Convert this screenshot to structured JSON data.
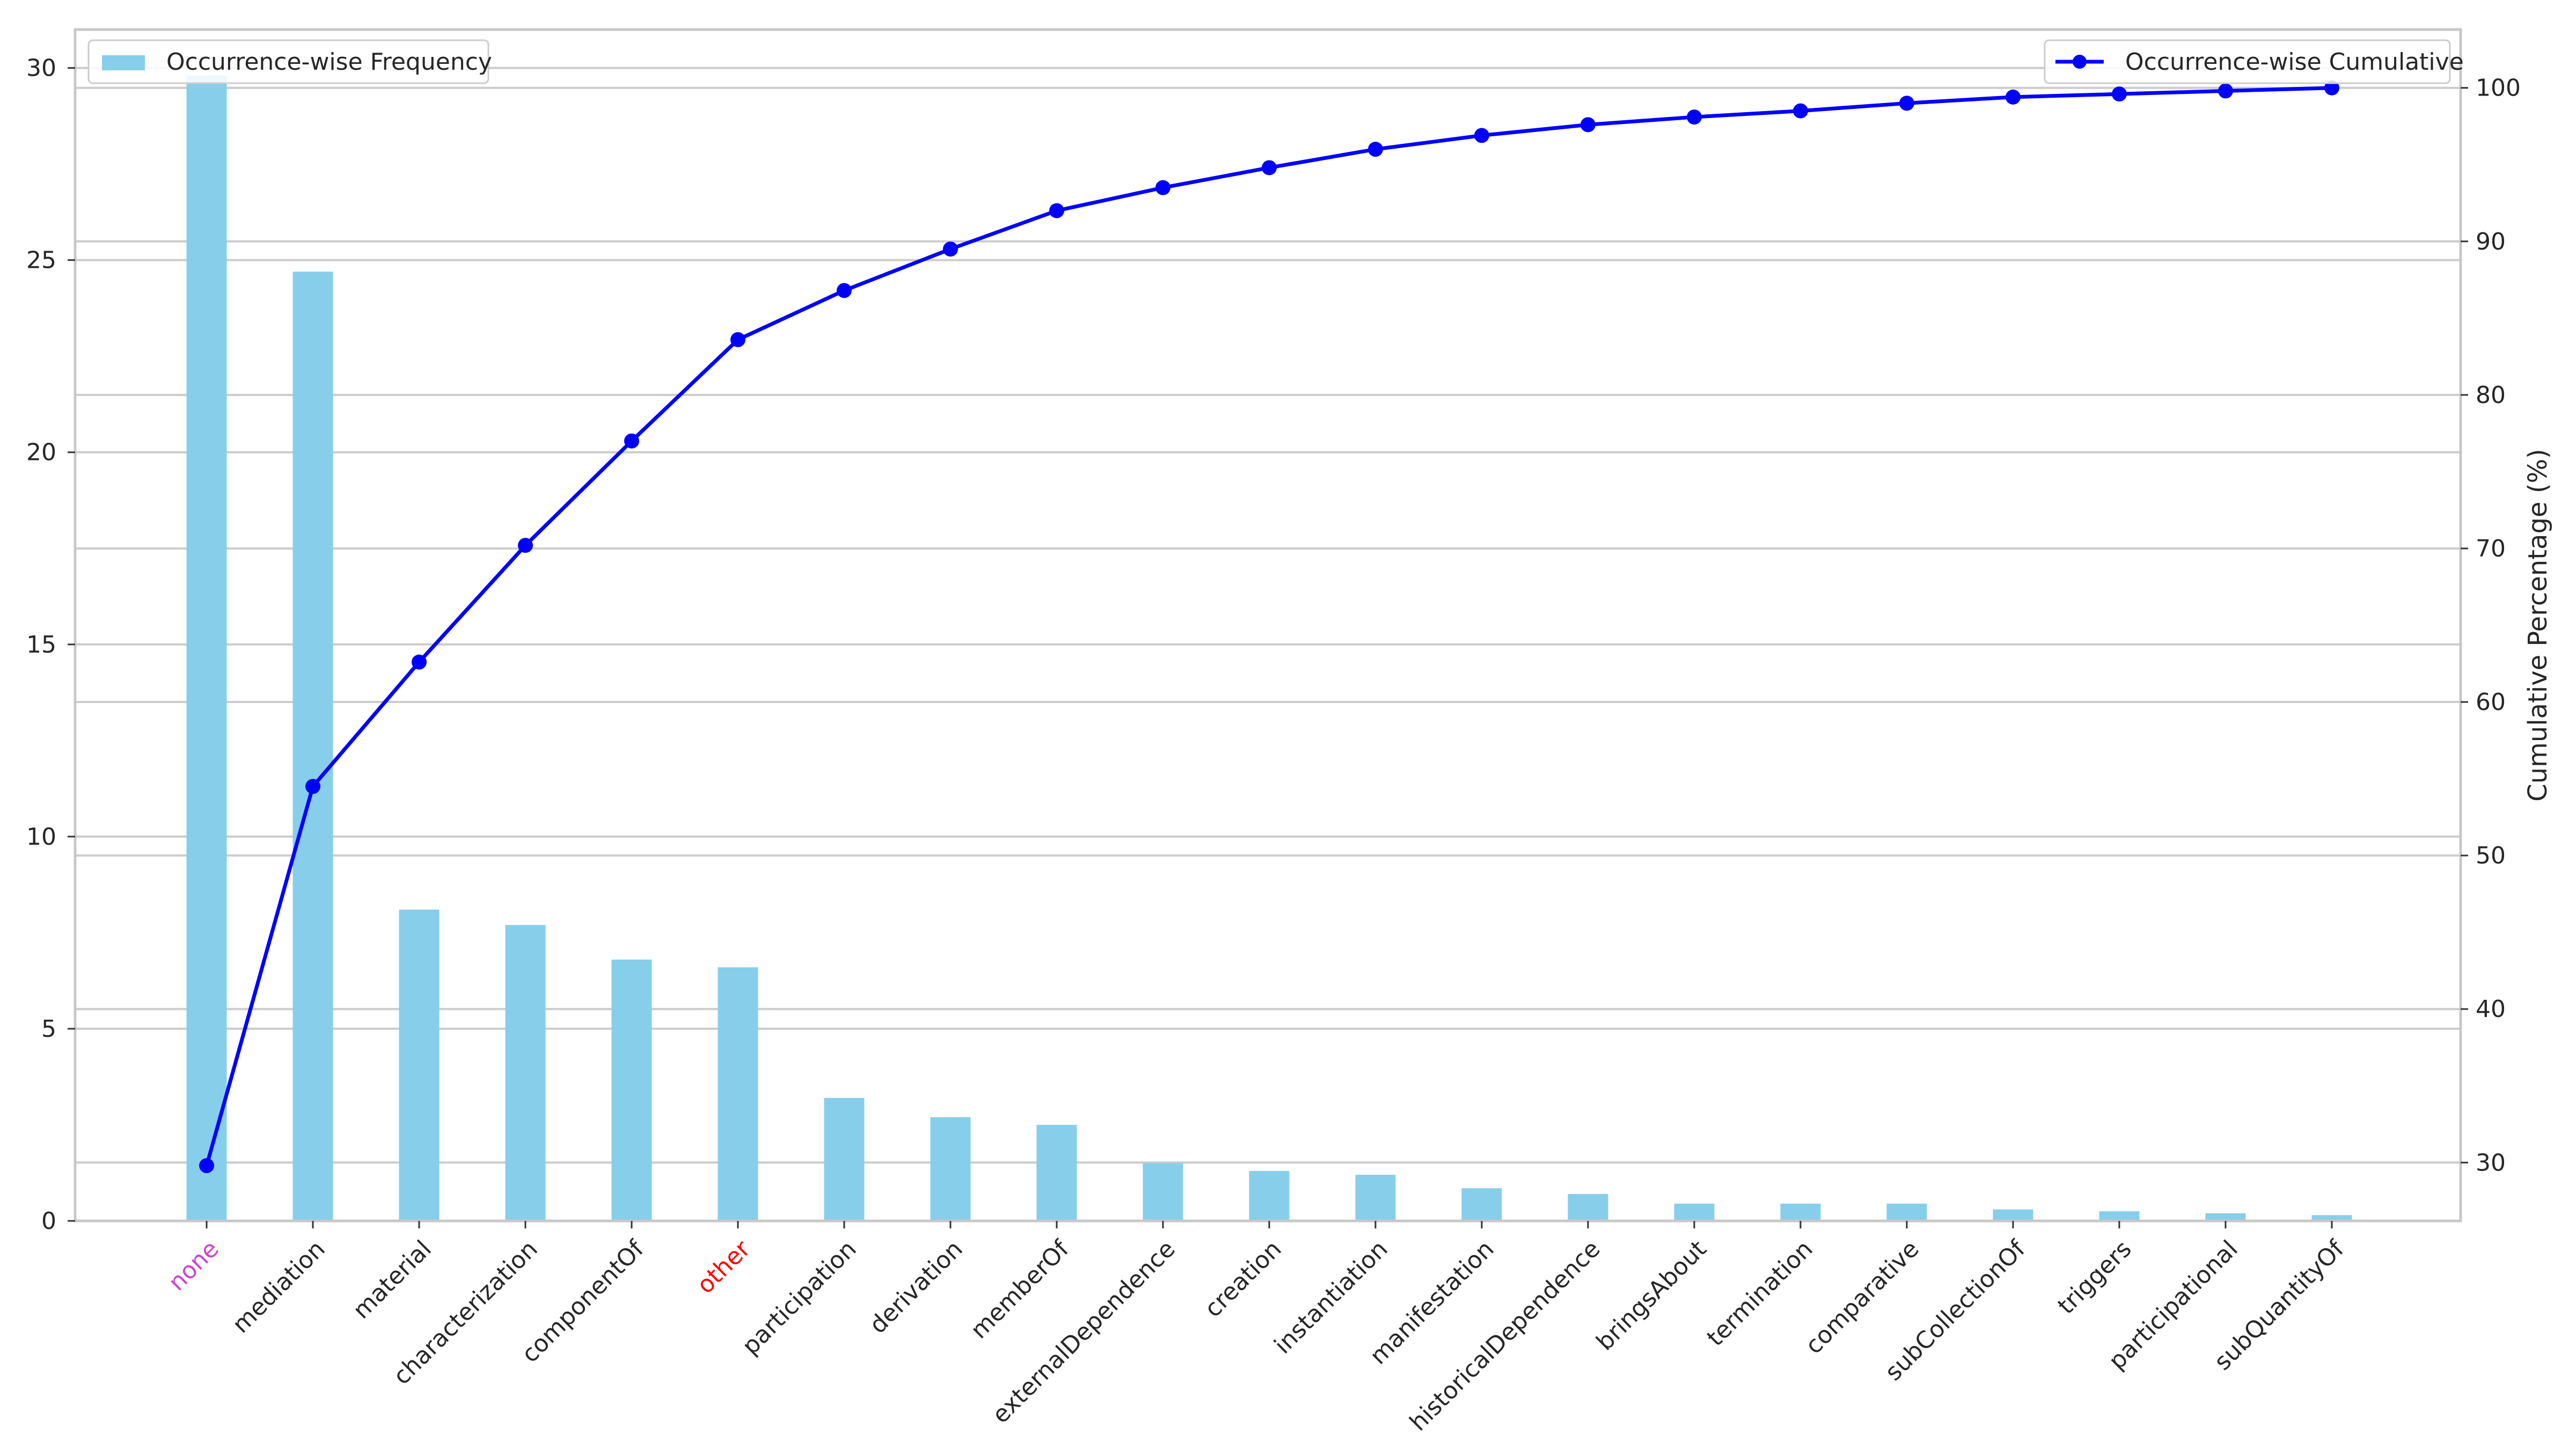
{
  "chart_data": {
    "type": "bar",
    "categories": [
      "none",
      "mediation",
      "material",
      "characterization",
      "componentOf",
      "other",
      "participation",
      "derivation",
      "memberOf",
      "externalDependence",
      "creation",
      "instantiation",
      "manifestation",
      "historicalDependence",
      "bringsAbout",
      "termination",
      "comparative",
      "subCollectionOf",
      "triggers",
      "participational",
      "subQuantityOf"
    ],
    "category_colors": {
      "none": "#cc44cc",
      "other": "#ff0000"
    },
    "series": [
      {
        "name": "Occurrence-wise Frequency",
        "type": "bar",
        "axis": "left",
        "color": "#87ceeb",
        "values": [
          29.8,
          24.7,
          8.1,
          7.7,
          6.8,
          6.6,
          3.2,
          2.7,
          2.5,
          1.5,
          1.3,
          1.2,
          0.85,
          0.7,
          0.45,
          0.45,
          0.45,
          0.3,
          0.25,
          0.2,
          0.15
        ]
      },
      {
        "name": "Occurrence-wise Cumulative",
        "type": "line",
        "axis": "right",
        "color": "#0000ff",
        "values": [
          29.8,
          54.5,
          62.6,
          70.2,
          77.0,
          83.6,
          86.8,
          89.5,
          92.0,
          93.5,
          94.8,
          96.0,
          96.9,
          97.6,
          98.1,
          98.5,
          99.0,
          99.4,
          99.6,
          99.8,
          100.0
        ]
      }
    ],
    "y_left": {
      "ylim": [
        0,
        31
      ],
      "ticks": [
        "0",
        "5",
        "10",
        "15",
        "20",
        "25",
        "30"
      ],
      "label": ""
    },
    "y_right": {
      "ylim": [
        26.2,
        103.8
      ],
      "ticks": [
        "30",
        "40",
        "50",
        "60",
        "70",
        "80",
        "90",
        "100"
      ],
      "label": "Cumulative Percentage (%)"
    },
    "xlabel": "",
    "title": "",
    "grid": true,
    "legends": {
      "bar": "top-left",
      "line": "top-right"
    }
  }
}
